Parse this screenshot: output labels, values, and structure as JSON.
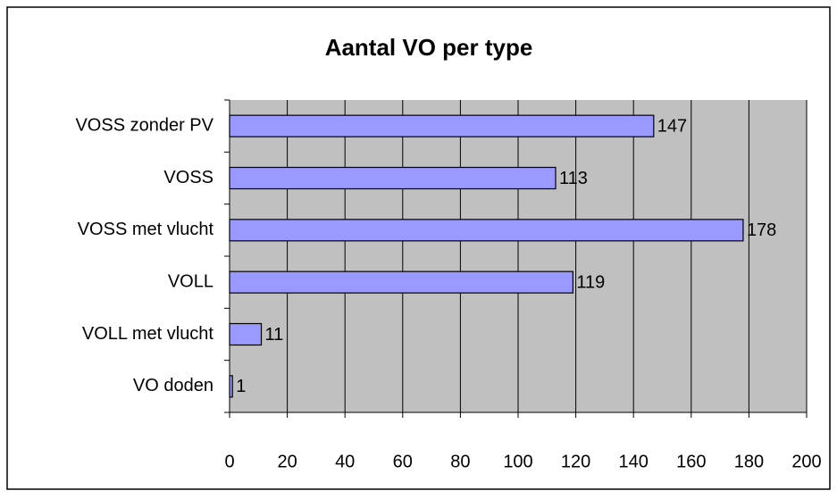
{
  "chart_data": {
    "type": "bar",
    "orientation": "horizontal",
    "title": "Aantal VO per type",
    "categories": [
      "VOSS zonder PV",
      "VOSS",
      "VOSS met vlucht",
      "VOLL",
      "VOLL met vlucht",
      "VO doden"
    ],
    "values": [
      147,
      113,
      178,
      119,
      11,
      1
    ],
    "color": "#9999ff",
    "xlim": [
      0,
      200
    ],
    "xticks": [
      0,
      20,
      40,
      60,
      80,
      100,
      120,
      140,
      160,
      180,
      200
    ],
    "grid": true,
    "data_labels": true
  }
}
